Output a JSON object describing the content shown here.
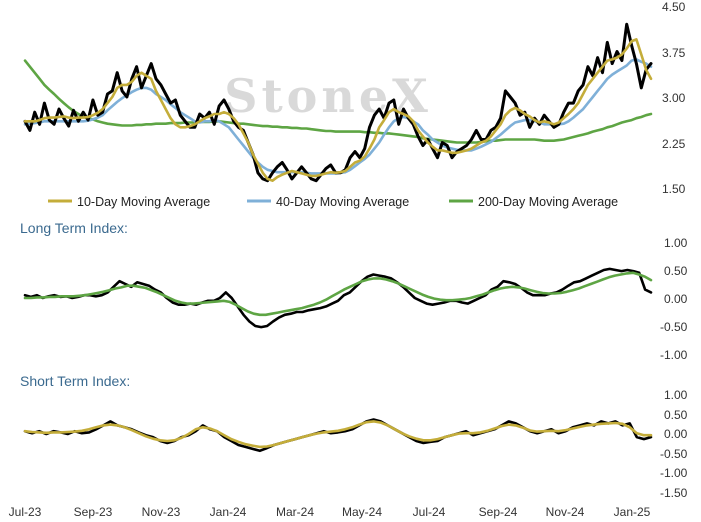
{
  "watermark": "StoneX",
  "colors": {
    "price": "#000000",
    "ma10": "#c4ad3a",
    "ma40": "#7fb0d8",
    "ma200": "#5ea544",
    "lt_short": "#000000",
    "lt_long": "#5ea544",
    "st_short": "#000000",
    "st_long": "#c4ad3a",
    "title": "#3b6a8f"
  },
  "chart_data": [
    {
      "type": "line",
      "panel": "price",
      "y_ticks": [
        "4.50",
        "3.75",
        "3.00",
        "2.25",
        "1.50"
      ],
      "ylim": [
        1.5,
        4.5
      ],
      "legend": [
        "10-Day Moving Average",
        "40-Day Moving Average",
        "200-Day Moving Average"
      ],
      "legend_position": "bottom",
      "series": [
        {
          "name": "Price",
          "color_key": "price",
          "values": [
            2.6,
            2.45,
            2.75,
            2.55,
            2.9,
            2.62,
            2.55,
            2.8,
            2.65,
            2.52,
            2.78,
            2.6,
            2.75,
            2.62,
            2.95,
            2.7,
            2.75,
            3.05,
            3.1,
            3.4,
            3.1,
            3.0,
            3.3,
            3.5,
            3.15,
            3.35,
            3.55,
            3.3,
            3.2,
            3.05,
            2.9,
            2.95,
            2.7,
            2.6,
            2.5,
            2.5,
            2.72,
            2.65,
            2.75,
            2.55,
            2.85,
            2.95,
            2.8,
            2.6,
            2.5,
            2.45,
            2.25,
            2.05,
            1.75,
            1.65,
            1.62,
            1.75,
            1.85,
            1.92,
            1.8,
            1.65,
            1.75,
            1.85,
            1.75,
            1.65,
            1.62,
            1.72,
            1.82,
            1.88,
            1.75,
            1.75,
            1.8,
            2.0,
            2.1,
            2.0,
            2.15,
            2.5,
            2.7,
            2.8,
            2.65,
            2.9,
            2.95,
            2.55,
            2.8,
            2.65,
            2.55,
            2.35,
            2.2,
            2.3,
            2.15,
            2.0,
            2.25,
            2.2,
            2.0,
            2.1,
            2.15,
            2.2,
            2.3,
            2.45,
            2.3,
            2.3,
            2.45,
            2.5,
            2.65,
            3.1,
            3.0,
            2.9,
            2.7,
            2.75,
            2.5,
            2.65,
            2.55,
            2.7,
            2.6,
            2.5,
            2.55,
            2.75,
            2.9,
            2.9,
            3.1,
            3.2,
            3.5,
            3.35,
            3.65,
            3.4,
            3.9,
            3.55,
            3.75,
            3.6,
            4.2,
            3.85,
            3.55,
            3.15,
            3.45,
            3.55
          ]
        },
        {
          "name": "10-Day Moving Average",
          "color_key": "ma10",
          "values": [
            2.6,
            2.6,
            2.6,
            2.62,
            2.65,
            2.66,
            2.66,
            2.67,
            2.68,
            2.66,
            2.65,
            2.66,
            2.66,
            2.67,
            2.7,
            2.74,
            2.8,
            2.9,
            3.0,
            3.15,
            3.2,
            3.2,
            3.25,
            3.35,
            3.4,
            3.35,
            3.3,
            3.1,
            2.95,
            2.8,
            2.65,
            2.55,
            2.5,
            2.5,
            2.52,
            2.55,
            2.6,
            2.65,
            2.68,
            2.72,
            2.72,
            2.75,
            2.72,
            2.65,
            2.55,
            2.4,
            2.25,
            2.05,
            1.9,
            1.75,
            1.65,
            1.62,
            1.68,
            1.72,
            1.75,
            1.78,
            1.76,
            1.74,
            1.72,
            1.7,
            1.7,
            1.72,
            1.74,
            1.76,
            1.75,
            1.76,
            1.78,
            1.85,
            1.92,
            1.95,
            2.02,
            2.15,
            2.3,
            2.5,
            2.62,
            2.75,
            2.8,
            2.75,
            2.72,
            2.68,
            2.6,
            2.45,
            2.35,
            2.25,
            2.18,
            2.12,
            2.12,
            2.1,
            2.08,
            2.08,
            2.1,
            2.12,
            2.15,
            2.2,
            2.25,
            2.28,
            2.35,
            2.45,
            2.55,
            2.7,
            2.78,
            2.82,
            2.78,
            2.72,
            2.68,
            2.62,
            2.58,
            2.6,
            2.58,
            2.55,
            2.58,
            2.65,
            2.72,
            2.8,
            2.9,
            3.05,
            3.2,
            3.3,
            3.4,
            3.5,
            3.6,
            3.62,
            3.65,
            3.7,
            3.8,
            3.92,
            3.95,
            3.7,
            3.45,
            3.3
          ]
        },
        {
          "name": "40-Day Moving Average",
          "color_key": "ma40",
          "values": [
            2.55,
            2.56,
            2.57,
            2.58,
            2.6,
            2.6,
            2.6,
            2.6,
            2.6,
            2.6,
            2.6,
            2.6,
            2.6,
            2.61,
            2.63,
            2.66,
            2.7,
            2.78,
            2.85,
            2.92,
            2.98,
            3.03,
            3.08,
            3.12,
            3.15,
            3.15,
            3.12,
            3.05,
            3.0,
            2.95,
            2.88,
            2.82,
            2.75,
            2.7,
            2.65,
            2.6,
            2.58,
            2.6,
            2.6,
            2.62,
            2.6,
            2.55,
            2.5,
            2.4,
            2.3,
            2.2,
            2.1,
            2.0,
            1.92,
            1.85,
            1.8,
            1.78,
            1.76,
            1.76,
            1.76,
            1.76,
            1.76,
            1.76,
            1.75,
            1.74,
            1.74,
            1.74,
            1.74,
            1.74,
            1.74,
            1.75,
            1.76,
            1.8,
            1.86,
            1.92,
            1.98,
            2.05,
            2.15,
            2.25,
            2.38,
            2.5,
            2.6,
            2.65,
            2.67,
            2.65,
            2.6,
            2.55,
            2.45,
            2.38,
            2.3,
            2.25,
            2.2,
            2.17,
            2.15,
            2.13,
            2.12,
            2.12,
            2.12,
            2.15,
            2.18,
            2.22,
            2.26,
            2.32,
            2.38,
            2.45,
            2.52,
            2.58,
            2.6,
            2.62,
            2.62,
            2.6,
            2.58,
            2.55,
            2.55,
            2.55,
            2.55,
            2.56,
            2.6,
            2.66,
            2.73,
            2.8,
            2.9,
            3.0,
            3.1,
            3.2,
            3.3,
            3.37,
            3.42,
            3.47,
            3.52,
            3.6,
            3.62,
            3.58,
            3.55,
            3.5
          ]
        },
        {
          "name": "200-Day Moving Average",
          "color_key": "ma200",
          "values": [
            3.6,
            3.5,
            3.4,
            3.3,
            3.2,
            3.12,
            3.05,
            2.97,
            2.9,
            2.83,
            2.77,
            2.72,
            2.67,
            2.65,
            2.63,
            2.6,
            2.58,
            2.56,
            2.55,
            2.54,
            2.53,
            2.53,
            2.53,
            2.54,
            2.54,
            2.55,
            2.55,
            2.56,
            2.56,
            2.56,
            2.57,
            2.57,
            2.57,
            2.58,
            2.58,
            2.58,
            2.59,
            2.59,
            2.59,
            2.6,
            2.6,
            2.59,
            2.58,
            2.57,
            2.56,
            2.56,
            2.55,
            2.54,
            2.53,
            2.52,
            2.52,
            2.51,
            2.51,
            2.5,
            2.5,
            2.49,
            2.49,
            2.48,
            2.48,
            2.47,
            2.46,
            2.45,
            2.44,
            2.44,
            2.43,
            2.43,
            2.43,
            2.43,
            2.43,
            2.43,
            2.42,
            2.42,
            2.41,
            2.41,
            2.4,
            2.4,
            2.39,
            2.38,
            2.37,
            2.36,
            2.35,
            2.34,
            2.32,
            2.31,
            2.3,
            2.29,
            2.28,
            2.27,
            2.26,
            2.25,
            2.25,
            2.25,
            2.25,
            2.25,
            2.26,
            2.27,
            2.28,
            2.28,
            2.29,
            2.3,
            2.3,
            2.3,
            2.3,
            2.3,
            2.3,
            2.3,
            2.29,
            2.28,
            2.28,
            2.28,
            2.29,
            2.3,
            2.32,
            2.34,
            2.36,
            2.38,
            2.4,
            2.43,
            2.45,
            2.47,
            2.5,
            2.52,
            2.55,
            2.58,
            2.6,
            2.62,
            2.65,
            2.67,
            2.7,
            2.72
          ]
        }
      ]
    },
    {
      "type": "line",
      "panel": "long-term",
      "title": "Long Term Index:",
      "y_ticks": [
        "1.00",
        "0.50",
        "0.00",
        "-0.50",
        "-1.00"
      ],
      "ylim": [
        -1.0,
        1.0
      ],
      "series": [
        {
          "color_key": "lt_short",
          "values": [
            0.05,
            0.02,
            0.05,
            0.0,
            0.03,
            0.05,
            0.02,
            0.03,
            0.0,
            0.02,
            0.05,
            0.05,
            0.03,
            0.05,
            0.1,
            0.2,
            0.3,
            0.25,
            0.2,
            0.28,
            0.25,
            0.22,
            0.15,
            0.1,
            0.0,
            -0.08,
            -0.12,
            -0.12,
            -0.1,
            -0.12,
            -0.08,
            -0.05,
            -0.05,
            0.0,
            0.1,
            0.0,
            -0.15,
            -0.3,
            -0.42,
            -0.5,
            -0.52,
            -0.5,
            -0.42,
            -0.35,
            -0.3,
            -0.28,
            -0.25,
            -0.25,
            -0.22,
            -0.2,
            -0.18,
            -0.15,
            -0.1,
            -0.05,
            0.05,
            0.1,
            0.2,
            0.3,
            0.38,
            0.42,
            0.4,
            0.38,
            0.35,
            0.28,
            0.2,
            0.1,
            0.0,
            -0.05,
            -0.1,
            -0.12,
            -0.1,
            -0.08,
            -0.05,
            -0.05,
            -0.08,
            -0.1,
            -0.05,
            0.0,
            0.05,
            0.15,
            0.2,
            0.3,
            0.28,
            0.25,
            0.18,
            0.1,
            0.05,
            0.05,
            0.05,
            0.08,
            0.1,
            0.15,
            0.22,
            0.28,
            0.3,
            0.35,
            0.4,
            0.45,
            0.5,
            0.52,
            0.5,
            0.48,
            0.5,
            0.48,
            0.45,
            0.15,
            0.1
          ]
        },
        {
          "color_key": "lt_long",
          "values": [
            0.0,
            0.0,
            0.01,
            0.01,
            0.02,
            0.02,
            0.03,
            0.03,
            0.03,
            0.04,
            0.05,
            0.07,
            0.09,
            0.11,
            0.14,
            0.17,
            0.19,
            0.22,
            0.22,
            0.2,
            0.18,
            0.14,
            0.1,
            0.05,
            0.0,
            -0.05,
            -0.08,
            -0.1,
            -0.1,
            -0.09,
            -0.08,
            -0.07,
            -0.06,
            -0.05,
            -0.07,
            -0.12,
            -0.18,
            -0.24,
            -0.28,
            -0.3,
            -0.3,
            -0.28,
            -0.26,
            -0.24,
            -0.22,
            -0.2,
            -0.18,
            -0.15,
            -0.12,
            -0.08,
            -0.03,
            0.03,
            0.09,
            0.15,
            0.2,
            0.25,
            0.3,
            0.33,
            0.35,
            0.35,
            0.33,
            0.3,
            0.26,
            0.21,
            0.16,
            0.11,
            0.06,
            0.02,
            -0.01,
            -0.03,
            -0.04,
            -0.04,
            -0.03,
            -0.02,
            0.0,
            0.03,
            0.06,
            0.1,
            0.14,
            0.17,
            0.19,
            0.2,
            0.19,
            0.17,
            0.14,
            0.11,
            0.09,
            0.08,
            0.08,
            0.09,
            0.11,
            0.14,
            0.17,
            0.21,
            0.25,
            0.29,
            0.33,
            0.37,
            0.4,
            0.42,
            0.44,
            0.45,
            0.42,
            0.38,
            0.32
          ]
        }
      ]
    },
    {
      "type": "line",
      "panel": "short-term",
      "title": "Short Term Index:",
      "y_ticks": [
        "1.00",
        "0.50",
        "0.00",
        "-0.50",
        "-1.00",
        "-1.50"
      ],
      "ylim": [
        -1.5,
        1.0
      ],
      "series": [
        {
          "color_key": "st_short",
          "values": [
            0.05,
            0.0,
            0.05,
            -0.02,
            0.05,
            0.02,
            -0.02,
            0.05,
            0.0,
            0.02,
            0.1,
            0.2,
            0.3,
            0.2,
            0.15,
            0.1,
            0.02,
            -0.05,
            -0.1,
            -0.2,
            -0.25,
            -0.2,
            -0.1,
            -0.05,
            0.05,
            0.2,
            0.1,
            0.05,
            -0.1,
            -0.2,
            -0.3,
            -0.35,
            -0.4,
            -0.45,
            -0.38,
            -0.3,
            -0.25,
            -0.2,
            -0.15,
            -0.1,
            -0.05,
            0.0,
            0.05,
            0.0,
            0.02,
            0.05,
            0.1,
            0.2,
            0.3,
            0.35,
            0.3,
            0.2,
            0.1,
            0.0,
            -0.1,
            -0.2,
            -0.25,
            -0.22,
            -0.2,
            -0.1,
            -0.05,
            0.0,
            0.05,
            -0.05,
            0.0,
            0.05,
            0.1,
            0.2,
            0.3,
            0.25,
            0.15,
            0.05,
            0.0,
            0.05,
            0.1,
            0.0,
            0.05,
            0.15,
            0.2,
            0.25,
            0.2,
            0.3,
            0.25,
            0.3,
            0.2,
            0.25,
            -0.1,
            -0.15,
            -0.1
          ]
        },
        {
          "color_key": "st_long",
          "values": [
            0.05,
            0.03,
            0.02,
            0.01,
            0.02,
            0.02,
            0.03,
            0.04,
            0.06,
            0.1,
            0.15,
            0.2,
            0.22,
            0.2,
            0.15,
            0.08,
            0.0,
            -0.08,
            -0.14,
            -0.18,
            -0.2,
            -0.18,
            -0.12,
            -0.02,
            0.1,
            0.15,
            0.12,
            0.05,
            -0.05,
            -0.15,
            -0.22,
            -0.28,
            -0.32,
            -0.35,
            -0.34,
            -0.3,
            -0.25,
            -0.2,
            -0.15,
            -0.1,
            -0.05,
            -0.01,
            0.02,
            0.04,
            0.06,
            0.1,
            0.15,
            0.22,
            0.28,
            0.3,
            0.27,
            0.2,
            0.1,
            0.0,
            -0.08,
            -0.14,
            -0.18,
            -0.18,
            -0.15,
            -0.1,
            -0.05,
            -0.01,
            0.0,
            0.0,
            0.02,
            0.06,
            0.12,
            0.18,
            0.22,
            0.2,
            0.14,
            0.07,
            0.04,
            0.05,
            0.06,
            0.05,
            0.08,
            0.12,
            0.16,
            0.2,
            0.22,
            0.24,
            0.25,
            0.26,
            0.24,
            0.15,
            0.0,
            -0.05,
            -0.05
          ]
        }
      ]
    }
  ],
  "x_ticks": [
    "Jul-23",
    "Sep-23",
    "Nov-23",
    "Jan-24",
    "Mar-24",
    "May-24",
    "Jul-24",
    "Sep-24",
    "Nov-24",
    "Jan-25"
  ]
}
